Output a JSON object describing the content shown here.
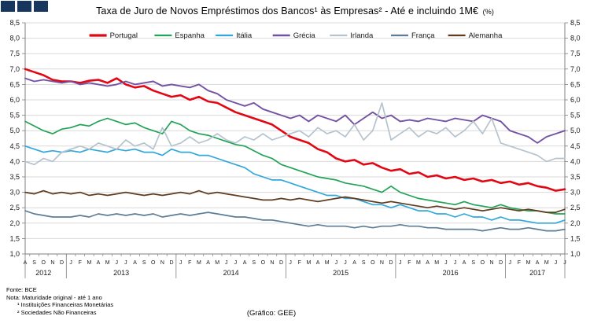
{
  "brand": {
    "logo_color": "#17375e"
  },
  "title": {
    "main": "Taxa de Juro de Novos Empréstimos dos Bancos¹ às Empresas² - Até e incluindo 1M€",
    "unit": "(%)"
  },
  "footer": {
    "fonte": "Fonte: BCE",
    "nota": "Nota: Maturidade original - até 1 ano",
    "note1": "¹ Instituições Financeiras Monetárias",
    "note2": "² Sociedades Não Financeiras",
    "credit": "(Gráfico: GEE)"
  },
  "chart_data": {
    "type": "line",
    "title": "Taxa de Juro de Novos Empréstimos dos Bancos às Empresas - Até e incluindo 1M€ (%)",
    "ylim": [
      1.0,
      8.5
    ],
    "ytick_step": 0.5,
    "grid": true,
    "legend_position": "top",
    "grid_color": "#d9d9d9",
    "axis_color": "#7f7f7f",
    "months": [
      "A",
      "S",
      "O",
      "N",
      "D",
      "J",
      "F",
      "M",
      "A",
      "M",
      "J",
      "J",
      "A",
      "S",
      "O",
      "N",
      "D",
      "J",
      "F",
      "M",
      "A",
      "M",
      "J",
      "J",
      "A",
      "S",
      "O",
      "N",
      "D",
      "J",
      "F",
      "M",
      "A",
      "M",
      "J",
      "J",
      "A",
      "S",
      "O",
      "N",
      "D",
      "J",
      "F",
      "M",
      "A",
      "M",
      "J",
      "J",
      "A",
      "S",
      "O",
      "N",
      "D",
      "J",
      "F",
      "M",
      "A",
      "M",
      "J",
      "J"
    ],
    "years": [
      {
        "label": "2012",
        "span": 5
      },
      {
        "label": "2013",
        "span": 12
      },
      {
        "label": "2014",
        "span": 12
      },
      {
        "label": "2015",
        "span": 12
      },
      {
        "label": "2016",
        "span": 12
      },
      {
        "label": "2017",
        "span": 7
      }
    ],
    "series": [
      {
        "name": "Portugal",
        "color": "#e30613",
        "width": 2.6,
        "values": [
          7.0,
          6.9,
          6.8,
          6.65,
          6.6,
          6.6,
          6.55,
          6.62,
          6.65,
          6.55,
          6.7,
          6.5,
          6.4,
          6.45,
          6.3,
          6.2,
          6.1,
          6.15,
          6.0,
          6.1,
          5.95,
          5.9,
          5.75,
          5.6,
          5.5,
          5.4,
          5.3,
          5.2,
          5.0,
          4.8,
          4.7,
          4.6,
          4.4,
          4.3,
          4.1,
          4.0,
          4.05,
          3.9,
          3.95,
          3.8,
          3.7,
          3.75,
          3.6,
          3.65,
          3.5,
          3.55,
          3.45,
          3.5,
          3.4,
          3.45,
          3.35,
          3.4,
          3.3,
          3.35,
          3.25,
          3.3,
          3.2,
          3.15,
          3.05,
          3.1
        ]
      },
      {
        "name": "Espanha",
        "color": "#22a355",
        "width": 1.7,
        "values": [
          5.3,
          5.15,
          5.0,
          4.9,
          5.05,
          5.1,
          5.2,
          5.15,
          5.3,
          5.4,
          5.3,
          5.2,
          5.25,
          5.1,
          5.0,
          4.9,
          5.3,
          5.2,
          5.0,
          4.9,
          4.85,
          4.75,
          4.65,
          4.55,
          4.5,
          4.35,
          4.2,
          4.1,
          3.9,
          3.8,
          3.7,
          3.6,
          3.5,
          3.45,
          3.4,
          3.3,
          3.25,
          3.2,
          3.1,
          3.0,
          3.2,
          3.0,
          2.9,
          2.8,
          2.75,
          2.7,
          2.65,
          2.6,
          2.7,
          2.6,
          2.55,
          2.5,
          2.6,
          2.5,
          2.45,
          2.4,
          2.4,
          2.35,
          2.3,
          2.3
        ]
      },
      {
        "name": "Itália",
        "color": "#31a8dc",
        "width": 1.7,
        "values": [
          4.5,
          4.4,
          4.3,
          4.35,
          4.3,
          4.35,
          4.3,
          4.4,
          4.35,
          4.3,
          4.4,
          4.35,
          4.4,
          4.3,
          4.3,
          4.2,
          4.4,
          4.3,
          4.3,
          4.2,
          4.2,
          4.1,
          4.0,
          3.9,
          3.8,
          3.6,
          3.5,
          3.4,
          3.4,
          3.3,
          3.2,
          3.1,
          3.0,
          2.9,
          2.9,
          2.8,
          2.8,
          2.7,
          2.6,
          2.6,
          2.5,
          2.6,
          2.5,
          2.4,
          2.4,
          2.3,
          2.3,
          2.2,
          2.3,
          2.2,
          2.2,
          2.1,
          2.2,
          2.1,
          2.1,
          2.05,
          2.0,
          2.0,
          2.0,
          2.1
        ]
      },
      {
        "name": "Grécia",
        "color": "#7352a3",
        "width": 1.9,
        "values": [
          6.7,
          6.6,
          6.65,
          6.6,
          6.55,
          6.6,
          6.5,
          6.55,
          6.5,
          6.45,
          6.5,
          6.6,
          6.5,
          6.55,
          6.6,
          6.45,
          6.5,
          6.45,
          6.4,
          6.5,
          6.3,
          6.2,
          6.0,
          5.9,
          5.8,
          5.9,
          5.7,
          5.6,
          5.5,
          5.4,
          5.5,
          5.3,
          5.5,
          5.4,
          5.3,
          5.5,
          5.2,
          5.4,
          5.6,
          5.4,
          5.5,
          5.3,
          5.35,
          5.3,
          5.4,
          5.35,
          5.3,
          5.4,
          5.35,
          5.3,
          5.5,
          5.4,
          5.3,
          5.0,
          4.9,
          4.8,
          4.6,
          4.8,
          4.9,
          5.0
        ]
      },
      {
        "name": "Irlanda",
        "color": "#b5c3ce",
        "width": 1.7,
        "values": [
          4.0,
          3.9,
          4.1,
          4.0,
          4.3,
          4.4,
          4.5,
          4.4,
          4.6,
          4.5,
          4.4,
          4.7,
          4.5,
          4.6,
          4.4,
          5.1,
          4.5,
          4.6,
          4.8,
          4.6,
          4.7,
          4.9,
          4.7,
          4.6,
          4.8,
          4.7,
          4.9,
          4.7,
          4.8,
          4.9,
          5.0,
          4.8,
          5.1,
          4.9,
          5.0,
          4.8,
          5.2,
          4.7,
          5.0,
          5.9,
          4.7,
          4.9,
          5.1,
          4.8,
          5.0,
          4.9,
          5.1,
          4.8,
          5.0,
          5.3,
          4.9,
          5.4,
          4.6,
          4.5,
          4.4,
          4.3,
          4.2,
          4.0,
          4.1,
          4.1
        ]
      },
      {
        "name": "França",
        "color": "#5d7d96",
        "width": 1.7,
        "values": [
          2.4,
          2.3,
          2.25,
          2.2,
          2.2,
          2.2,
          2.25,
          2.2,
          2.3,
          2.25,
          2.3,
          2.25,
          2.3,
          2.25,
          2.3,
          2.2,
          2.25,
          2.3,
          2.25,
          2.3,
          2.35,
          2.3,
          2.25,
          2.2,
          2.2,
          2.15,
          2.1,
          2.1,
          2.05,
          2.0,
          1.95,
          1.9,
          1.95,
          1.9,
          1.9,
          1.9,
          1.85,
          1.9,
          1.85,
          1.9,
          1.9,
          1.95,
          1.9,
          1.9,
          1.85,
          1.85,
          1.8,
          1.8,
          1.8,
          1.8,
          1.75,
          1.8,
          1.85,
          1.8,
          1.8,
          1.85,
          1.8,
          1.75,
          1.75,
          1.8
        ]
      },
      {
        "name": "Alemanha",
        "color": "#5f3c20",
        "width": 1.7,
        "values": [
          3.0,
          2.95,
          3.05,
          2.95,
          3.0,
          2.95,
          3.0,
          2.9,
          2.95,
          2.9,
          2.95,
          3.0,
          2.95,
          2.9,
          2.95,
          2.9,
          2.95,
          3.0,
          2.95,
          3.05,
          2.95,
          3.0,
          2.95,
          2.9,
          2.85,
          2.8,
          2.75,
          2.75,
          2.8,
          2.75,
          2.8,
          2.75,
          2.7,
          2.75,
          2.8,
          2.85,
          2.8,
          2.75,
          2.7,
          2.65,
          2.7,
          2.65,
          2.6,
          2.55,
          2.5,
          2.55,
          2.5,
          2.45,
          2.5,
          2.45,
          2.4,
          2.45,
          2.5,
          2.45,
          2.4,
          2.45,
          2.4,
          2.35,
          2.35,
          2.45
        ]
      }
    ]
  }
}
